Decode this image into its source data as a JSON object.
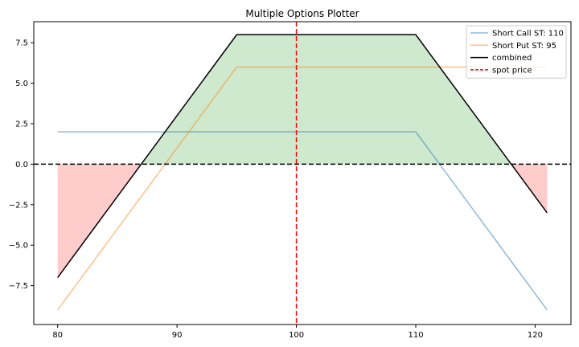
{
  "chart_data": {
    "type": "line",
    "title": "Multiple Options Plotter",
    "xlabel": "",
    "ylabel": "",
    "xlim": [
      78,
      123
    ],
    "ylim": [
      -9.9,
      8.8
    ],
    "xticks": [
      80,
      90,
      100,
      110,
      120
    ],
    "yticks": [
      -7.5,
      -5.0,
      -2.5,
      0.0,
      2.5,
      5.0,
      7.5
    ],
    "ytick_labels": [
      "−7.5",
      "−5.0",
      "−2.5",
      "0.0",
      "2.5",
      "5.0",
      "7.5"
    ],
    "grid": false,
    "legend_position": "top-right",
    "series": [
      {
        "name": "Short Call ST: 110",
        "color": "#1f77b4",
        "style": "solid",
        "opacity": 0.5,
        "x": [
          80,
          110,
          121
        ],
        "y": [
          2,
          2,
          -9
        ]
      },
      {
        "name": "Short Put ST: 95",
        "color": "#ff7f0e",
        "style": "solid",
        "opacity": 0.5,
        "x": [
          80,
          95,
          121
        ],
        "y": [
          -9,
          6,
          6
        ]
      },
      {
        "name": "combined",
        "color": "#000000",
        "style": "solid",
        "opacity": 1,
        "x": [
          80,
          95,
          110,
          121
        ],
        "y": [
          -7,
          8,
          8,
          -3
        ]
      }
    ],
    "reference_lines": [
      {
        "name": "spot price",
        "orientation": "vertical",
        "value": 100,
        "color": "#ff0000",
        "style": "dashed"
      },
      {
        "name": "",
        "orientation": "horizontal",
        "value": 0,
        "color": "#000000",
        "style": "dashed"
      }
    ],
    "fill": {
      "profit_color": "#2ca02c",
      "loss_color": "#ff0000",
      "profit_opacity": 0.23,
      "loss_opacity": 0.2
    }
  }
}
